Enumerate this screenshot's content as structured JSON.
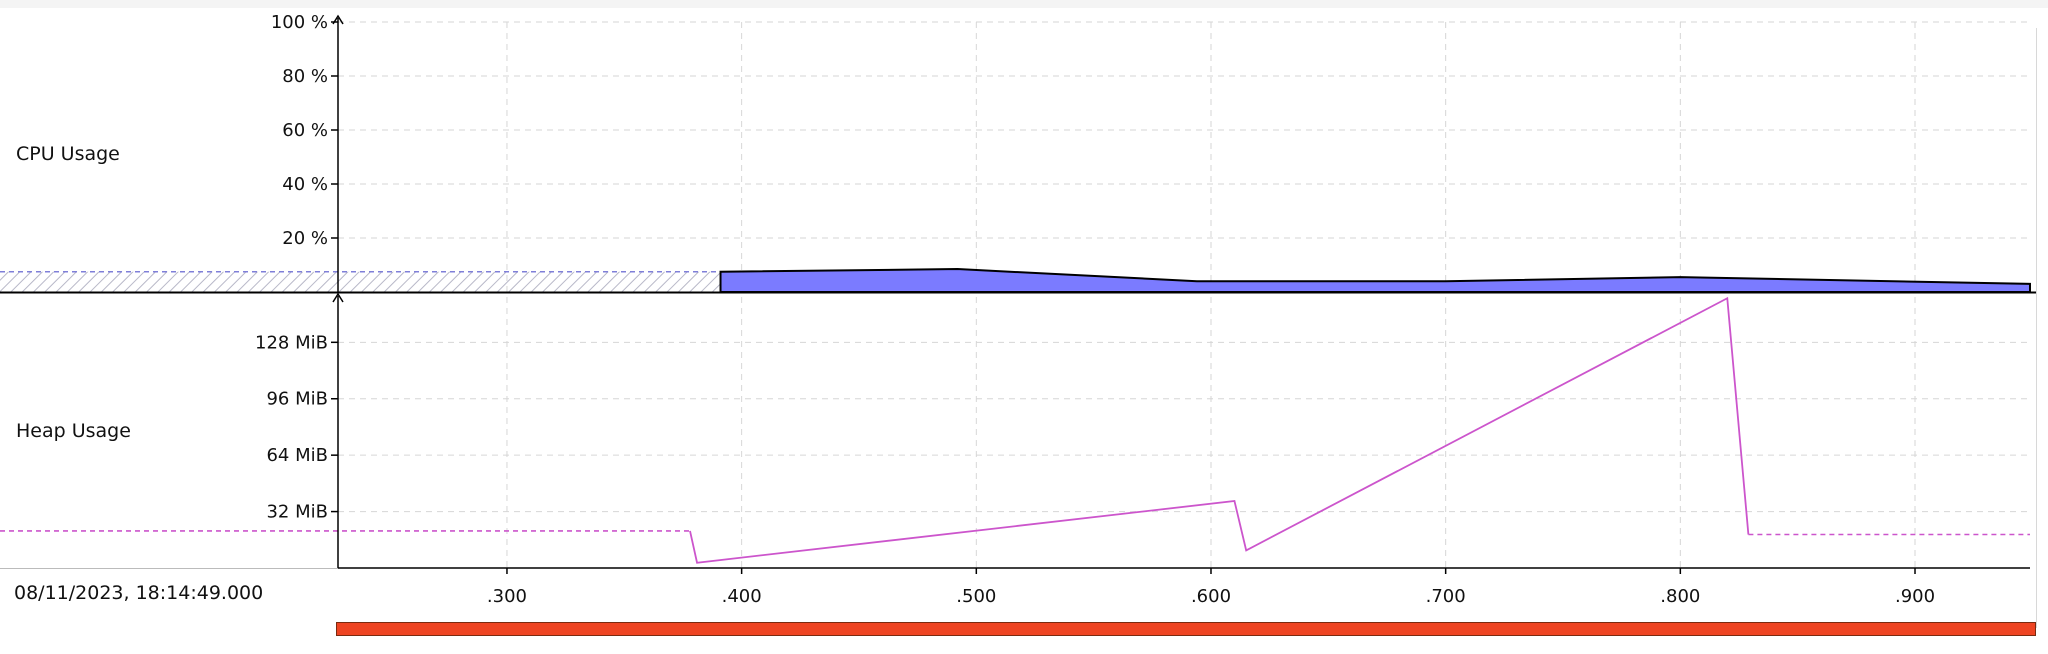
{
  "rows": {
    "cpu_label": "CPU Usage",
    "heap_label": "Heap Usage"
  },
  "start_timestamp": "08/11/2023, 18:14:49.000",
  "colors": {
    "cpu_fill": "#7b7bff",
    "cpu_stroke": "#000000",
    "heap_line": "#cc55cc",
    "grid": "#d6d6d6",
    "progress": "#ee4422",
    "background": "#ffffff"
  },
  "progress": {
    "fraction": 1.0
  },
  "chart_data": {
    "type": "line",
    "x_axis": {
      "min": 0.228,
      "max": 0.949,
      "ticks": [
        0.3,
        0.4,
        0.5,
        0.6,
        0.7,
        0.8,
        0.9
      ],
      "tick_labels": [
        ".300",
        ".400",
        ".500",
        ".600",
        ".700",
        ".800",
        ".900"
      ]
    },
    "panels": [
      {
        "name": "CPU Usage",
        "type": "area",
        "unit": "%",
        "ylim": [
          0,
          100
        ],
        "y_ticks": [
          20,
          40,
          60,
          80,
          100
        ],
        "y_tick_labels": [
          "20 %",
          "40 %",
          "60 %",
          "80 %",
          "100 %"
        ],
        "grid": true,
        "series": [
          {
            "estimated_before_first_sample": {
              "from": 0.228,
              "to": 0.391,
              "value": 7.5
            },
            "points": [
              [
                0.391,
                7.5
              ],
              [
                0.492,
                8.5
              ],
              [
                0.594,
                4
              ],
              [
                0.7,
                4
              ],
              [
                0.8,
                5.5
              ],
              [
                0.949,
                3
              ]
            ]
          }
        ]
      },
      {
        "name": "Heap Usage",
        "type": "line",
        "unit": "MiB",
        "ylim": [
          0,
          152
        ],
        "y_ticks": [
          32,
          64,
          96,
          128
        ],
        "y_tick_labels": [
          "32 MiB",
          "64 MiB",
          "96 MiB",
          "128 MiB"
        ],
        "grid": true,
        "series": [
          {
            "dashed_before": {
              "from": 0.228,
              "to": 0.378,
              "value": 21
            },
            "points": [
              [
                0.378,
                21
              ],
              [
                0.381,
                3
              ],
              [
                0.61,
                38
              ],
              [
                0.615,
                10
              ],
              [
                0.82,
                153
              ],
              [
                0.829,
                19
              ]
            ],
            "dashed_after": {
              "from": 0.829,
              "to": 0.949,
              "value": 19
            }
          }
        ]
      }
    ]
  }
}
